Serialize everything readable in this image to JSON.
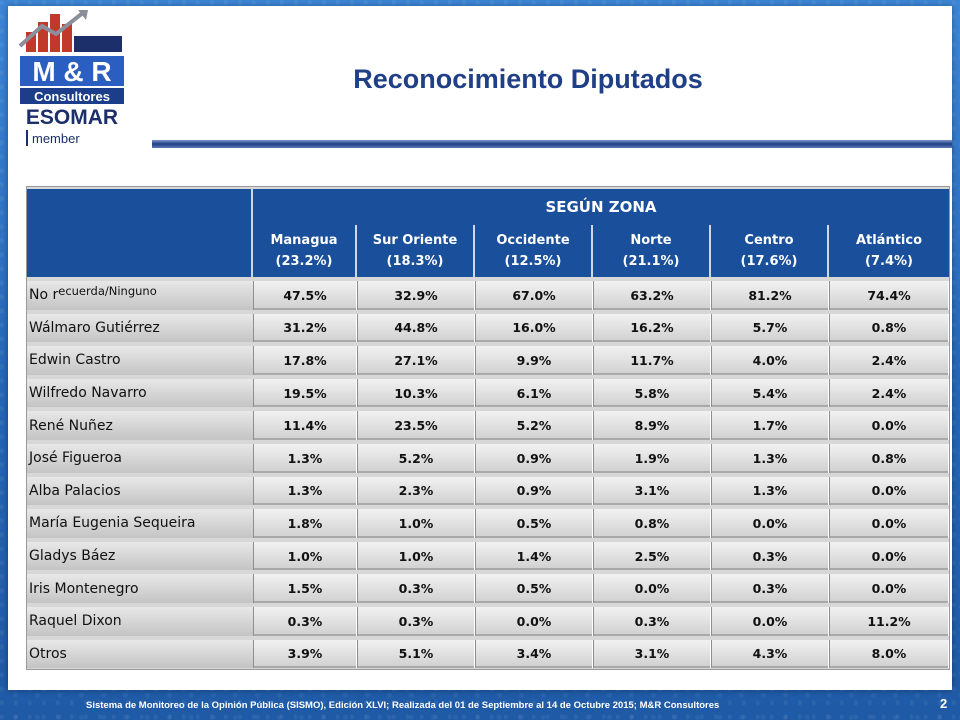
{
  "header": {
    "title": "Reconocimiento Diputados",
    "logo": {
      "brand": "M & R",
      "sub": "Consultores",
      "esomar": "ESOMAR",
      "member": "member"
    }
  },
  "table": {
    "group_header": "SEGÚN ZONA",
    "zones": [
      {
        "name": "Managua",
        "share": "(23.2%)"
      },
      {
        "name": "Sur Oriente",
        "share": "(18.3%)"
      },
      {
        "name": "Occidente",
        "share": "(12.5%)"
      },
      {
        "name": "Norte",
        "share": "(21.1%)"
      },
      {
        "name": "Centro",
        "share": "(17.6%)"
      },
      {
        "name": "Atlántico",
        "share": "(7.4%)"
      }
    ],
    "rows": [
      {
        "label_main": "No r",
        "label_small": "ecuerda/Ninguno",
        "values": [
          "47.5%",
          "32.9%",
          "67.0%",
          "63.2%",
          "81.2%",
          "74.4%"
        ]
      },
      {
        "label_main": "Wálmaro Gutiérrez",
        "label_small": "",
        "values": [
          "31.2%",
          "44.8%",
          "16.0%",
          "16.2%",
          "5.7%",
          "0.8%"
        ]
      },
      {
        "label_main": "Edwin Castro",
        "label_small": "",
        "values": [
          "17.8%",
          "27.1%",
          "9.9%",
          "11.7%",
          "4.0%",
          "2.4%"
        ]
      },
      {
        "label_main": "Wilfredo Navarro",
        "label_small": "",
        "values": [
          "19.5%",
          "10.3%",
          "6.1%",
          "5.8%",
          "5.4%",
          "2.4%"
        ]
      },
      {
        "label_main": "René Nuñez",
        "label_small": "",
        "values": [
          "11.4%",
          "23.5%",
          "5.2%",
          "8.9%",
          "1.7%",
          "0.0%"
        ]
      },
      {
        "label_main": "José Figueroa",
        "label_small": "",
        "values": [
          "1.3%",
          "5.2%",
          "0.9%",
          "1.9%",
          "1.3%",
          "0.8%"
        ]
      },
      {
        "label_main": "Alba Palacios",
        "label_small": "",
        "values": [
          "1.3%",
          "2.3%",
          "0.9%",
          "3.1%",
          "1.3%",
          "0.0%"
        ]
      },
      {
        "label_main": "María Eugenia Sequeira",
        "label_small": "",
        "values": [
          "1.8%",
          "1.0%",
          "0.5%",
          "0.8%",
          "0.0%",
          "0.0%"
        ]
      },
      {
        "label_main": "Gladys Báez",
        "label_small": "",
        "values": [
          "1.0%",
          "1.0%",
          "1.4%",
          "2.5%",
          "0.3%",
          "0.0%"
        ]
      },
      {
        "label_main": "Iris Montenegro",
        "label_small": "",
        "values": [
          "1.5%",
          "0.3%",
          "0.5%",
          "0.0%",
          "0.3%",
          "0.0%"
        ]
      },
      {
        "label_main": "Raquel Dixon",
        "label_small": "",
        "values": [
          "0.3%",
          "0.3%",
          "0.0%",
          "0.3%",
          "0.0%",
          "11.2%"
        ]
      },
      {
        "label_main": "Otros",
        "label_small": "",
        "values": [
          "3.9%",
          "5.1%",
          "3.4%",
          "3.1%",
          "4.3%",
          "8.0%"
        ]
      }
    ]
  },
  "footer": {
    "text": "Sistema de Monitoreo de la Opinión Pública (SISMO), Edición XLVI; Realizada del 01 de Septiembre al 14 de Octubre 2015; M&R Consultores",
    "page": "2"
  },
  "colors": {
    "title": "#1f3f86",
    "header_bg": "#1a4f9c",
    "background": "#2a6fc0"
  }
}
